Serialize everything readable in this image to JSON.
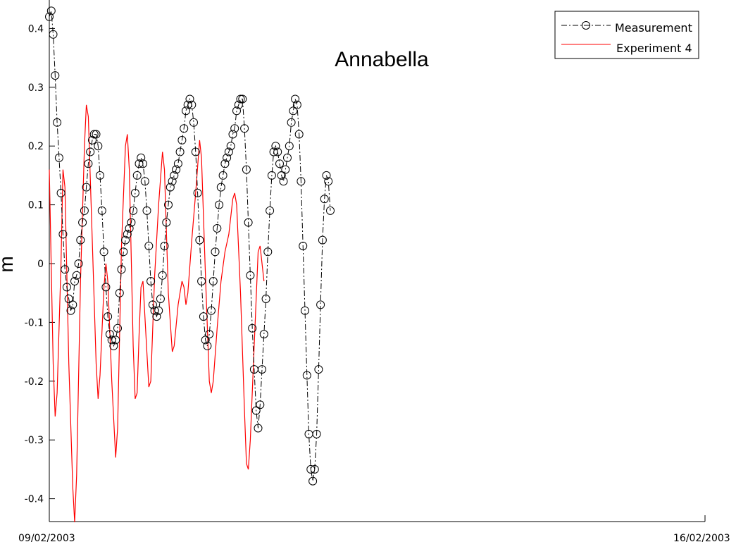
{
  "chart_data": {
    "type": "line",
    "title": "Annabella",
    "ylabel": "m",
    "xlabel": "",
    "x_start_label": "09/02/2003",
    "x_end_label": "16/02/2003",
    "xlim": [
      "2003-02-09",
      "2003-02-16"
    ],
    "ylim": [
      -0.44,
      0.44
    ],
    "yticks": [
      -0.4,
      -0.3,
      -0.2,
      -0.1,
      0,
      0.1,
      0.2,
      0.3,
      0.4
    ],
    "ytick_labels": [
      "-0.4",
      "-0.3",
      "-0.2",
      "-0.1",
      "0",
      "0.1",
      "0.2",
      "0.3",
      "0.4"
    ],
    "grid": false,
    "legend_position": "top-right",
    "series": [
      {
        "name": "Measurement",
        "color": "#000000",
        "style": "dash-dot with circle markers",
        "points": [
          [
            "2003-02-09T00:00",
            0.42
          ],
          [
            "2003-02-09T00:30",
            0.43
          ],
          [
            "2003-02-09T01:00",
            0.39
          ],
          [
            "2003-02-09T01:30",
            0.32
          ],
          [
            "2003-02-09T02:00",
            0.24
          ],
          [
            "2003-02-09T02:30",
            0.18
          ],
          [
            "2003-02-09T03:00",
            0.12
          ],
          [
            "2003-02-09T03:30",
            0.05
          ],
          [
            "2003-02-09T04:00",
            -0.01
          ],
          [
            "2003-02-09T04:30",
            -0.04
          ],
          [
            "2003-02-09T05:00",
            -0.06
          ],
          [
            "2003-02-09T05:30",
            -0.08
          ],
          [
            "2003-02-09T06:00",
            -0.07
          ],
          [
            "2003-02-09T06:30",
            -0.03
          ],
          [
            "2003-02-09T07:00",
            -0.02
          ],
          [
            "2003-02-09T07:30",
            0.0
          ],
          [
            "2003-02-09T08:00",
            0.04
          ],
          [
            "2003-02-09T08:30",
            0.07
          ],
          [
            "2003-02-09T09:00",
            0.09
          ],
          [
            "2003-02-09T09:30",
            0.13
          ],
          [
            "2003-02-09T10:00",
            0.17
          ],
          [
            "2003-02-09T10:30",
            0.19
          ],
          [
            "2003-02-09T11:00",
            0.21
          ],
          [
            "2003-02-09T11:30",
            0.22
          ],
          [
            "2003-02-09T12:00",
            0.22
          ],
          [
            "2003-02-09T12:30",
            0.2
          ],
          [
            "2003-02-09T13:00",
            0.15
          ],
          [
            "2003-02-09T13:30",
            0.09
          ],
          [
            "2003-02-09T14:00",
            0.02
          ],
          [
            "2003-02-09T14:30",
            -0.04
          ],
          [
            "2003-02-09T15:00",
            -0.09
          ],
          [
            "2003-02-09T15:30",
            -0.12
          ],
          [
            "2003-02-09T16:00",
            -0.13
          ],
          [
            "2003-02-09T16:30",
            -0.14
          ],
          [
            "2003-02-09T17:00",
            -0.13
          ],
          [
            "2003-02-09T17:30",
            -0.11
          ],
          [
            "2003-02-09T18:00",
            -0.05
          ],
          [
            "2003-02-09T18:30",
            -0.01
          ],
          [
            "2003-02-09T19:00",
            0.02
          ],
          [
            "2003-02-09T19:30",
            0.04
          ],
          [
            "2003-02-09T20:00",
            0.05
          ],
          [
            "2003-02-09T20:30",
            0.06
          ],
          [
            "2003-02-09T21:00",
            0.07
          ],
          [
            "2003-02-09T21:30",
            0.09
          ],
          [
            "2003-02-09T22:00",
            0.12
          ],
          [
            "2003-02-09T22:30",
            0.15
          ],
          [
            "2003-02-09T23:00",
            0.17
          ],
          [
            "2003-02-09T23:30",
            0.18
          ],
          [
            "2003-02-10T00:00",
            0.17
          ],
          [
            "2003-02-10T00:30",
            0.14
          ],
          [
            "2003-02-10T01:00",
            0.09
          ],
          [
            "2003-02-10T01:30",
            0.03
          ],
          [
            "2003-02-10T02:00",
            -0.03
          ],
          [
            "2003-02-10T02:30",
            -0.07
          ],
          [
            "2003-02-10T03:00",
            -0.08
          ],
          [
            "2003-02-10T03:30",
            -0.09
          ],
          [
            "2003-02-10T04:00",
            -0.08
          ],
          [
            "2003-02-10T04:30",
            -0.06
          ],
          [
            "2003-02-10T05:00",
            -0.02
          ],
          [
            "2003-02-10T05:30",
            0.03
          ],
          [
            "2003-02-10T06:00",
            0.07
          ],
          [
            "2003-02-10T06:30",
            0.1
          ],
          [
            "2003-02-10T07:00",
            0.13
          ],
          [
            "2003-02-10T07:30",
            0.14
          ],
          [
            "2003-02-10T08:00",
            0.15
          ],
          [
            "2003-02-10T08:30",
            0.16
          ],
          [
            "2003-02-10T09:00",
            0.17
          ],
          [
            "2003-02-10T09:30",
            0.19
          ],
          [
            "2003-02-10T10:00",
            0.21
          ],
          [
            "2003-02-10T10:30",
            0.23
          ],
          [
            "2003-02-10T11:00",
            0.26
          ],
          [
            "2003-02-10T11:30",
            0.27
          ],
          [
            "2003-02-10T12:00",
            0.28
          ],
          [
            "2003-02-10T12:30",
            0.27
          ],
          [
            "2003-02-10T13:00",
            0.24
          ],
          [
            "2003-02-10T13:30",
            0.19
          ],
          [
            "2003-02-10T14:00",
            0.12
          ],
          [
            "2003-02-10T14:30",
            0.04
          ],
          [
            "2003-02-10T15:00",
            -0.03
          ],
          [
            "2003-02-10T15:30",
            -0.09
          ],
          [
            "2003-02-10T16:00",
            -0.13
          ],
          [
            "2003-02-10T16:30",
            -0.14
          ],
          [
            "2003-02-10T17:00",
            -0.12
          ],
          [
            "2003-02-10T17:30",
            -0.08
          ],
          [
            "2003-02-10T18:00",
            -0.03
          ],
          [
            "2003-02-10T18:30",
            0.02
          ],
          [
            "2003-02-10T19:00",
            0.06
          ],
          [
            "2003-02-10T19:30",
            0.1
          ],
          [
            "2003-02-10T20:00",
            0.13
          ],
          [
            "2003-02-10T20:30",
            0.15
          ],
          [
            "2003-02-10T21:00",
            0.17
          ],
          [
            "2003-02-10T21:30",
            0.18
          ],
          [
            "2003-02-10T22:00",
            0.19
          ],
          [
            "2003-02-10T22:30",
            0.2
          ],
          [
            "2003-02-10T23:00",
            0.22
          ],
          [
            "2003-02-10T23:30",
            0.23
          ],
          [
            "2003-02-11T00:00",
            0.26
          ],
          [
            "2003-02-11T00:30",
            0.27
          ],
          [
            "2003-02-11T01:00",
            0.28
          ],
          [
            "2003-02-11T01:30",
            0.28
          ],
          [
            "2003-02-11T02:00",
            0.23
          ],
          [
            "2003-02-11T02:30",
            0.16
          ],
          [
            "2003-02-11T03:00",
            0.07
          ],
          [
            "2003-02-11T03:30",
            -0.02
          ],
          [
            "2003-02-11T04:00",
            -0.11
          ],
          [
            "2003-02-11T04:30",
            -0.18
          ],
          [
            "2003-02-11T05:00",
            -0.25
          ],
          [
            "2003-02-11T05:30",
            -0.28
          ],
          [
            "2003-02-11T06:00",
            -0.24
          ],
          [
            "2003-02-11T06:30",
            -0.18
          ],
          [
            "2003-02-11T07:00",
            -0.12
          ],
          [
            "2003-02-11T07:30",
            -0.06
          ],
          [
            "2003-02-11T08:00",
            0.02
          ],
          [
            "2003-02-11T08:30",
            0.09
          ],
          [
            "2003-02-11T09:00",
            0.15
          ],
          [
            "2003-02-11T09:30",
            0.19
          ],
          [
            "2003-02-11T10:00",
            0.2
          ],
          [
            "2003-02-11T10:30",
            0.19
          ],
          [
            "2003-02-11T11:00",
            0.17
          ],
          [
            "2003-02-11T11:30",
            0.15
          ],
          [
            "2003-02-11T12:00",
            0.14
          ],
          [
            "2003-02-11T12:30",
            0.16
          ],
          [
            "2003-02-11T13:00",
            0.18
          ],
          [
            "2003-02-11T13:30",
            0.2
          ],
          [
            "2003-02-11T14:00",
            0.24
          ],
          [
            "2003-02-11T14:30",
            0.26
          ],
          [
            "2003-02-11T15:00",
            0.28
          ],
          [
            "2003-02-11T15:30",
            0.27
          ],
          [
            "2003-02-11T16:00",
            0.22
          ],
          [
            "2003-02-11T16:30",
            0.14
          ],
          [
            "2003-02-11T17:00",
            0.03
          ],
          [
            "2003-02-11T17:30",
            -0.08
          ],
          [
            "2003-02-11T18:00",
            -0.19
          ],
          [
            "2003-02-11T18:30",
            -0.29
          ],
          [
            "2003-02-11T19:00",
            -0.35
          ],
          [
            "2003-02-11T19:30",
            -0.37
          ],
          [
            "2003-02-11T20:00",
            -0.35
          ],
          [
            "2003-02-11T20:30",
            -0.29
          ],
          [
            "2003-02-11T21:00",
            -0.18
          ],
          [
            "2003-02-11T21:30",
            -0.07
          ],
          [
            "2003-02-11T22:00",
            0.04
          ],
          [
            "2003-02-11T22:30",
            0.11
          ],
          [
            "2003-02-11T23:00",
            0.15
          ],
          [
            "2003-02-11T23:30",
            0.14
          ],
          [
            "2003-02-12T00:00",
            0.09
          ]
        ]
      },
      {
        "name": "Experiment 4",
        "color": "#ff0000",
        "style": "solid",
        "points": [
          [
            "2003-02-09T00:00",
            0.16
          ],
          [
            "2003-02-09T01:00",
            -0.17
          ],
          [
            "2003-02-09T01:30",
            -0.26
          ],
          [
            "2003-02-09T02:00",
            -0.22
          ],
          [
            "2003-02-09T03:00",
            0.0
          ],
          [
            "2003-02-09T03:30",
            0.16
          ],
          [
            "2003-02-09T04:00",
            0.13
          ],
          [
            "2003-02-09T05:00",
            -0.17
          ],
          [
            "2003-02-09T06:00",
            -0.38
          ],
          [
            "2003-02-09T06:30",
            -0.44
          ],
          [
            "2003-02-09T07:00",
            -0.36
          ],
          [
            "2003-02-09T08:00",
            -0.03
          ],
          [
            "2003-02-09T09:00",
            0.2
          ],
          [
            "2003-02-09T09:30",
            0.27
          ],
          [
            "2003-02-09T10:00",
            0.25
          ],
          [
            "2003-02-09T11:00",
            0.04
          ],
          [
            "2003-02-09T12:00",
            -0.17
          ],
          [
            "2003-02-09T12:30",
            -0.23
          ],
          [
            "2003-02-09T13:00",
            -0.19
          ],
          [
            "2003-02-09T14:00",
            -0.04
          ],
          [
            "2003-02-09T14:30",
            0.0
          ],
          [
            "2003-02-09T15:00",
            -0.03
          ],
          [
            "2003-02-09T16:00",
            -0.2
          ],
          [
            "2003-02-09T17:00",
            -0.33
          ],
          [
            "2003-02-09T17:30",
            -0.28
          ],
          [
            "2003-02-09T18:30",
            0.03
          ],
          [
            "2003-02-09T19:30",
            0.2
          ],
          [
            "2003-02-09T20:00",
            0.22
          ],
          [
            "2003-02-09T20:30",
            0.16
          ],
          [
            "2003-02-09T21:30",
            -0.14
          ],
          [
            "2003-02-09T22:00",
            -0.23
          ],
          [
            "2003-02-09T22:30",
            -0.22
          ],
          [
            "2003-02-09T23:00",
            -0.12
          ],
          [
            "2003-02-09T23:30",
            -0.04
          ],
          [
            "2003-02-10T00:00",
            -0.03
          ],
          [
            "2003-02-10T01:00",
            -0.15
          ],
          [
            "2003-02-10T01:30",
            -0.21
          ],
          [
            "2003-02-10T02:00",
            -0.2
          ],
          [
            "2003-02-10T03:00",
            -0.02
          ],
          [
            "2003-02-10T04:00",
            0.1
          ],
          [
            "2003-02-10T05:00",
            0.19
          ],
          [
            "2003-02-10T05:30",
            0.16
          ],
          [
            "2003-02-10T06:30",
            -0.05
          ],
          [
            "2003-02-10T07:30",
            -0.15
          ],
          [
            "2003-02-10T08:00",
            -0.14
          ],
          [
            "2003-02-10T09:00",
            -0.07
          ],
          [
            "2003-02-10T09:30",
            -0.05
          ],
          [
            "2003-02-10T10:00",
            -0.03
          ],
          [
            "2003-02-10T10:30",
            -0.04
          ],
          [
            "2003-02-10T11:00",
            -0.07
          ],
          [
            "2003-02-10T11:30",
            -0.05
          ],
          [
            "2003-02-10T12:30",
            0.04
          ],
          [
            "2003-02-10T13:30",
            0.12
          ],
          [
            "2003-02-10T14:30",
            0.21
          ],
          [
            "2003-02-10T15:00",
            0.18
          ],
          [
            "2003-02-10T16:00",
            -0.02
          ],
          [
            "2003-02-10T17:00",
            -0.2
          ],
          [
            "2003-02-10T17:30",
            -0.22
          ],
          [
            "2003-02-10T18:00",
            -0.2
          ],
          [
            "2003-02-10T19:00",
            -0.11
          ],
          [
            "2003-02-10T20:00",
            -0.03
          ],
          [
            "2003-02-10T21:00",
            0.02
          ],
          [
            "2003-02-10T22:00",
            0.05
          ],
          [
            "2003-02-10T23:00",
            0.11
          ],
          [
            "2003-02-10T23:30",
            0.12
          ],
          [
            "2003-02-11T00:00",
            0.1
          ],
          [
            "2003-02-11T01:00",
            -0.05
          ],
          [
            "2003-02-11T02:00",
            -0.25
          ],
          [
            "2003-02-11T02:30",
            -0.34
          ],
          [
            "2003-02-11T03:00",
            -0.35
          ],
          [
            "2003-02-11T03:30",
            -0.3
          ],
          [
            "2003-02-11T04:30",
            -0.14
          ],
          [
            "2003-02-11T05:30",
            0.02
          ],
          [
            "2003-02-11T06:00",
            0.03
          ],
          [
            "2003-02-11T07:00",
            -0.03
          ]
        ]
      }
    ]
  }
}
